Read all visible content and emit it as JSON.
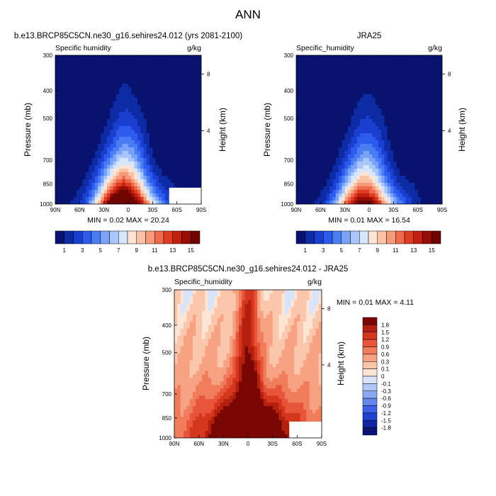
{
  "figure": {
    "title": "ANN"
  },
  "chart_data": [
    {
      "type": "heatmap",
      "id": "model",
      "title": "b.e13.BRCP85C5CN.ne30_g16.sehires24.012 (yrs 2081-2100)",
      "left_label": "Specific humidity",
      "right_label": "g/kg",
      "xlabel": "",
      "ylabel": "Pressure (mb)",
      "ylabel_right": "Height (km)",
      "x_ticks": [
        "90N",
        "60N",
        "30N",
        "0",
        "30S",
        "60S",
        "90S"
      ],
      "y_ticks": [
        "300",
        "400",
        "500",
        "700",
        "850",
        "1000"
      ],
      "y_right_ticks": [
        "8",
        "4"
      ],
      "x_range": [
        90,
        -90
      ],
      "y_range": [
        1000,
        300
      ],
      "y_scale": "log",
      "stats": "MIN =  0.02  MAX =  20.24",
      "peak": 20.24,
      "min": 0.02
    },
    {
      "type": "heatmap",
      "id": "obs",
      "title": "JRA25",
      "left_label": "Specific_humidity",
      "right_label": "g/kg",
      "xlabel": "",
      "ylabel": "Pressure (mb)",
      "ylabel_right": "Height (km)",
      "x_ticks": [
        "90N",
        "60N",
        "30N",
        "0",
        "30S",
        "60S",
        "90S"
      ],
      "y_ticks": [
        "300",
        "400",
        "500",
        "700",
        "850",
        "1000"
      ],
      "y_right_ticks": [
        "8",
        "4"
      ],
      "x_range": [
        90,
        -90
      ],
      "y_range": [
        1000,
        300
      ],
      "y_scale": "log",
      "stats": "MIN =  0.01  MAX =  16.54",
      "peak": 16.54,
      "min": 0.01
    },
    {
      "type": "heatmap",
      "id": "diff",
      "title": "b.e13.BRCP85C5CN.ne30_g16.sehires24.012 - JRA25",
      "left_label": "Specific_humidity",
      "right_label": "g/kg",
      "xlabel": "",
      "ylabel": "Pressure (mb)",
      "ylabel_right": "Height (km)",
      "x_ticks": [
        "90N",
        "60N",
        "30N",
        "0",
        "30S",
        "60S",
        "90S"
      ],
      "y_ticks": [
        "300",
        "400",
        "500",
        "700",
        "850",
        "1000"
      ],
      "y_right_ticks": [
        "8",
        "4"
      ],
      "x_range": [
        90,
        -90
      ],
      "y_range": [
        1000,
        300
      ],
      "y_scale": "log",
      "stats": "MIN =  0.01  MAX =  4.11",
      "peak": 4.11,
      "min": 0.01
    }
  ],
  "colorbar_abs": {
    "labels": [
      "1",
      "3",
      "5",
      "7",
      "9",
      "11",
      "13",
      "15"
    ],
    "levels": [
      1,
      2,
      3,
      4,
      5,
      6,
      7,
      8,
      9,
      10,
      11,
      12,
      13,
      14,
      15
    ],
    "colors": [
      "#08136f",
      "#0e2ba6",
      "#1a3fd0",
      "#2c5bee",
      "#4a7cf4",
      "#7aa2f8",
      "#a9c6fa",
      "#d6e6fc",
      "#fde4d4",
      "#fbc2a6",
      "#f79a7a",
      "#ef6a4d",
      "#df3d22",
      "#c11f10",
      "#980d06",
      "#6e0501"
    ]
  },
  "colorbar_diff": {
    "labels": [
      "1.8",
      "1.5",
      "1.2",
      "0.9",
      "0.6",
      "0.3",
      "0.1",
      "0",
      "-0.1",
      "-0.3",
      "-0.6",
      "-0.9",
      "-1.2",
      "-1.5",
      "-1.8"
    ],
    "colors": [
      "#7a0703",
      "#b3200f",
      "#d4371d",
      "#e8553a",
      "#f07c5c",
      "#f6a283",
      "#fac6ac",
      "#fde5d6",
      "#d8e4fb",
      "#b0c6f6",
      "#8aa7f2",
      "#6487ee",
      "#3d62e6",
      "#2142cf",
      "#0f26a4",
      "#071474"
    ]
  }
}
